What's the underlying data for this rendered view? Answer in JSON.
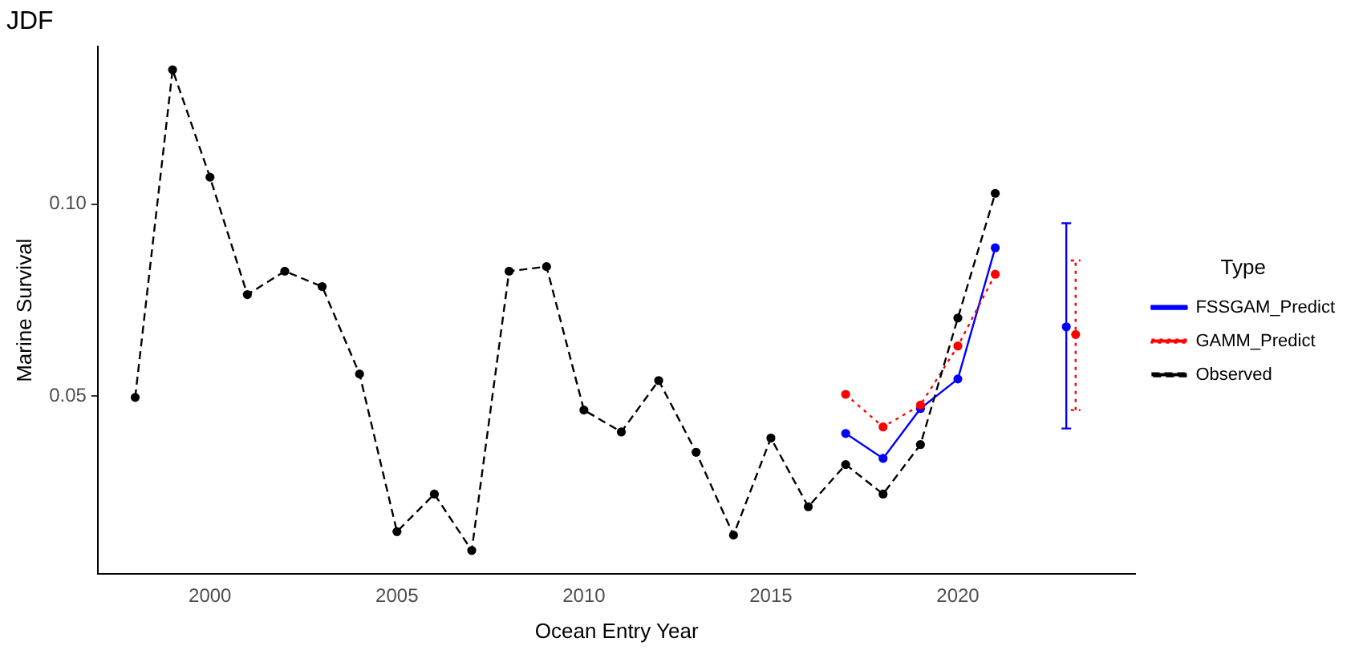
{
  "chart_data": {
    "type": "line",
    "title": "JDF",
    "xlabel": "Ocean Entry Year",
    "ylabel": "Marine Survival",
    "legend_title": "Type",
    "legend": "right",
    "grid": false,
    "marker": "circle",
    "xlim": [
      1997,
      2024.75
    ],
    "xticks": [
      2000,
      2005,
      2010,
      2015,
      2020
    ],
    "ylim": [
      0.0036,
      0.141
    ],
    "yticks": [
      {
        "value": 0.05,
        "label": "0.05"
      },
      {
        "value": 0.1,
        "label": "0.10"
      }
    ],
    "series": [
      {
        "name": "FSSGAM_Predict",
        "color": "#0000ff",
        "line_style": "solid",
        "x": [
          2017,
          2018,
          2019,
          2020,
          2021
        ],
        "values": [
          0.0402,
          0.0337,
          0.0467,
          0.0544,
          0.0886
        ]
      },
      {
        "name": "GAMM_Predict",
        "color": "#ff0000",
        "line_style": "dotted",
        "x": [
          2017,
          2018,
          2019,
          2020,
          2021
        ],
        "values": [
          0.0504,
          0.0419,
          0.0476,
          0.063,
          0.0817
        ]
      },
      {
        "name": "Observed",
        "color": "#000000",
        "line_style": "dashed",
        "x": [
          1998,
          1999,
          2000,
          2001,
          2002,
          2003,
          2004,
          2005,
          2006,
          2007,
          2008,
          2009,
          2010,
          2011,
          2012,
          2013,
          2014,
          2015,
          2016,
          2017,
          2018,
          2019,
          2020,
          2021
        ],
        "values": [
          0.0496,
          0.135,
          0.107,
          0.0764,
          0.0825,
          0.0785,
          0.0557,
          0.0146,
          0.0244,
          0.0097,
          0.0825,
          0.0837,
          0.0463,
          0.0406,
          0.054,
          0.0353,
          0.0137,
          0.039,
          0.0211,
          0.0321,
          0.0244,
          0.0373,
          0.0703,
          0.1028
        ]
      },
      {
        "type": "scatter",
        "color": "#0000ff",
        "line_style": "solid",
        "x": [
          2022.9
        ],
        "values": [
          0.068
        ],
        "errors": [
          [
            0.0415,
            0.095
          ]
        ]
      },
      {
        "type": "scatter",
        "color": "#ff0000",
        "line_style": "dotted",
        "x": [
          2023.15
        ],
        "values": [
          0.066
        ],
        "errors": [
          [
            0.0463,
            0.0853
          ]
        ]
      }
    ]
  }
}
